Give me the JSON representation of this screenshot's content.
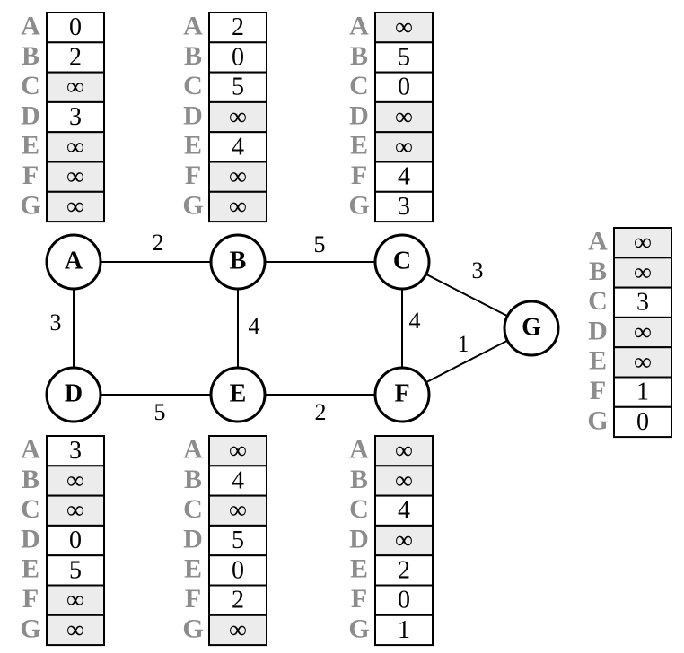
{
  "graph": {
    "nodes": [
      "A",
      "B",
      "C",
      "D",
      "E",
      "F",
      "G"
    ],
    "edges": [
      {
        "from": "A",
        "to": "B",
        "weight": "2"
      },
      {
        "from": "B",
        "to": "C",
        "weight": "5"
      },
      {
        "from": "A",
        "to": "D",
        "weight": "3"
      },
      {
        "from": "B",
        "to": "E",
        "weight": "4"
      },
      {
        "from": "C",
        "to": "F",
        "weight": "4"
      },
      {
        "from": "C",
        "to": "G",
        "weight": "3"
      },
      {
        "from": "F",
        "to": "G",
        "weight": "1"
      },
      {
        "from": "D",
        "to": "E",
        "weight": "5"
      },
      {
        "from": "E",
        "to": "F",
        "weight": "2"
      }
    ]
  },
  "row_labels": [
    "A",
    "B",
    "C",
    "D",
    "E",
    "F",
    "G"
  ],
  "tables": [
    {
      "node": "A",
      "values": [
        "0",
        "2",
        "∞",
        "3",
        "∞",
        "∞",
        "∞"
      ]
    },
    {
      "node": "B",
      "values": [
        "2",
        "0",
        "5",
        "∞",
        "4",
        "∞",
        "∞"
      ]
    },
    {
      "node": "C",
      "values": [
        "∞",
        "5",
        "0",
        "∞",
        "∞",
        "4",
        "3"
      ]
    },
    {
      "node": "G",
      "values": [
        "∞",
        "∞",
        "3",
        "∞",
        "∞",
        "1",
        "0"
      ]
    },
    {
      "node": "D",
      "values": [
        "3",
        "∞",
        "∞",
        "0",
        "5",
        "∞",
        "∞"
      ]
    },
    {
      "node": "E",
      "values": [
        "∞",
        "4",
        "∞",
        "5",
        "0",
        "2",
        "∞"
      ]
    },
    {
      "node": "F",
      "values": [
        "∞",
        "∞",
        "4",
        "∞",
        "2",
        "0",
        "1"
      ]
    }
  ],
  "colors": {
    "infinity_cell_fill": "#ececec",
    "finite_cell_fill": "#ffffff",
    "row_label_color": "#8c8c8c"
  }
}
